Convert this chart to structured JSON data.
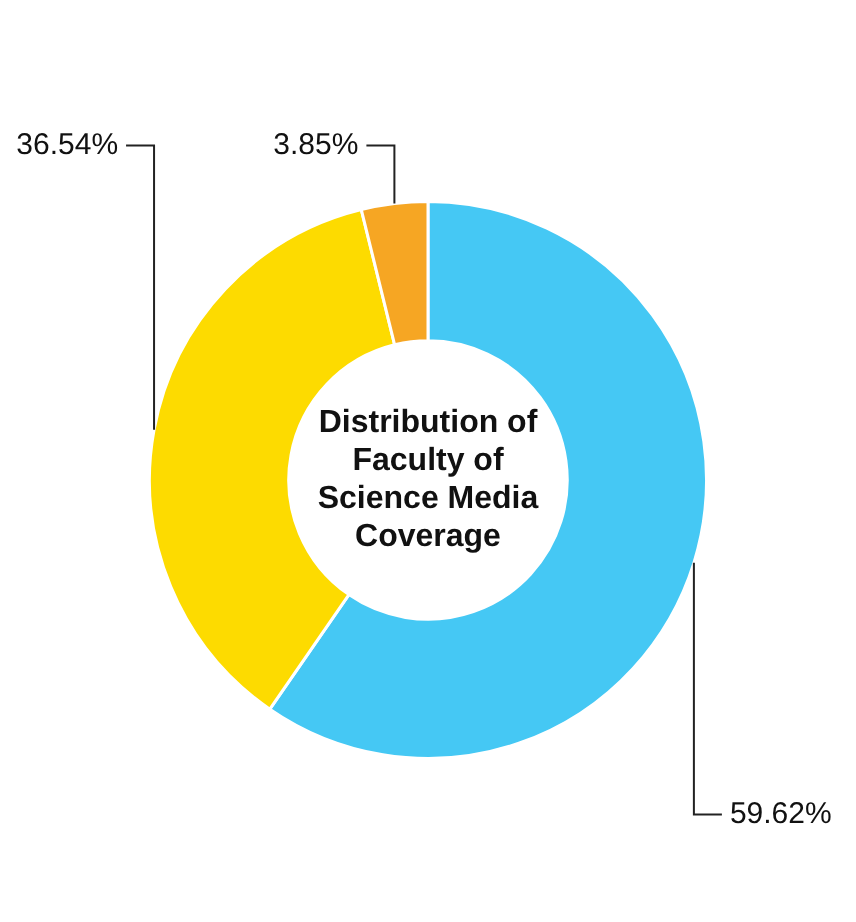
{
  "chart_data": {
    "type": "donut",
    "title": "Distribution of Faculty of Science Media Coverage",
    "categories": [
      null,
      null,
      null
    ],
    "values": [
      59.62,
      36.54,
      3.85
    ],
    "colors": [
      "#45c8f4",
      "#fddb00",
      "#f6a623"
    ],
    "value_labels": [
      "59.62%",
      "36.54%",
      "3.85%"
    ],
    "legend": false
  }
}
